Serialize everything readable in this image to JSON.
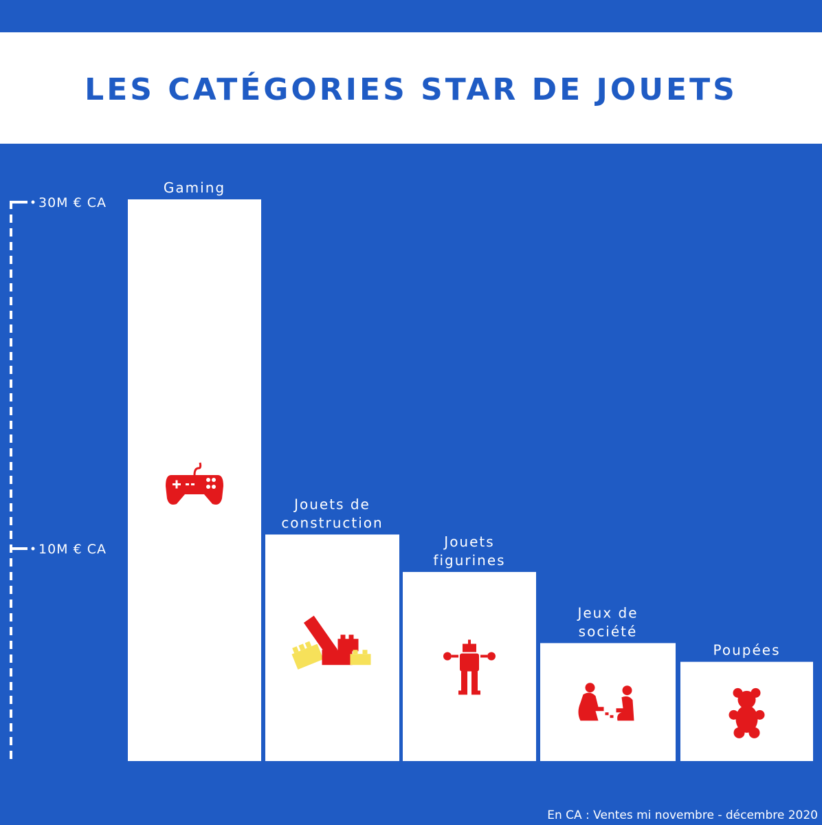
{
  "title": "LES CATÉGORIES STAR DE JOUETS",
  "source": "En CA : Ventes mi novembre - décembre 2020",
  "colors": {
    "background": "#1f5bc4",
    "bar": "#ffffff",
    "icon_red": "#e3191c",
    "icon_yellow": "#f6e15a"
  },
  "chart_data": {
    "type": "bar",
    "categories": [
      [
        "Gaming"
      ],
      [
        "Jouets de",
        "construction"
      ],
      [
        "Jouets",
        "figurines"
      ],
      [
        "Jeux de",
        "société"
      ],
      [
        "Poupées"
      ]
    ],
    "values": [
      30,
      12.1,
      10.1,
      6.3,
      5.3
    ],
    "icons": [
      "gamepad-icon",
      "building-blocks-icon",
      "robot-icon",
      "board-game-players-icon",
      "teddy-bear-icon"
    ],
    "ticks": [
      {
        "value": 30,
        "label": "30M € CA"
      },
      {
        "value": 10,
        "label": "10M € CA"
      }
    ],
    "ylim": [
      0,
      30
    ]
  }
}
